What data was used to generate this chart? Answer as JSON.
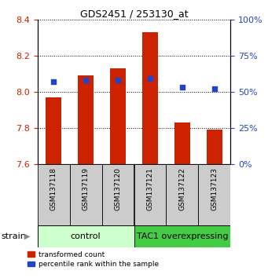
{
  "title": "GDS2451 / 253130_at",
  "samples": [
    "GSM137118",
    "GSM137119",
    "GSM137120",
    "GSM137121",
    "GSM137122",
    "GSM137123"
  ],
  "transformed_counts": [
    7.97,
    8.09,
    8.13,
    8.33,
    7.83,
    7.79
  ],
  "percentile_ranks": [
    57,
    58,
    58,
    59,
    53,
    52
  ],
  "ylim_left": [
    7.6,
    8.4
  ],
  "ylim_right": [
    0,
    100
  ],
  "yticks_left": [
    7.6,
    7.8,
    8.0,
    8.2,
    8.4
  ],
  "yticks_right": [
    0,
    25,
    50,
    75,
    100
  ],
  "bar_color": "#cc2200",
  "dot_color": "#2244cc",
  "bar_width": 0.5,
  "ctrl_color": "#ccffcc",
  "tac_color": "#44cc44",
  "label_bg": "#cccccc",
  "legend_red": "transformed count",
  "legend_blue": "percentile rank within the sample",
  "tick_color_left": "#cc2200",
  "tick_color_right": "#2244cc",
  "base_value": 7.6,
  "n_ctrl": 3,
  "n_tac": 3
}
